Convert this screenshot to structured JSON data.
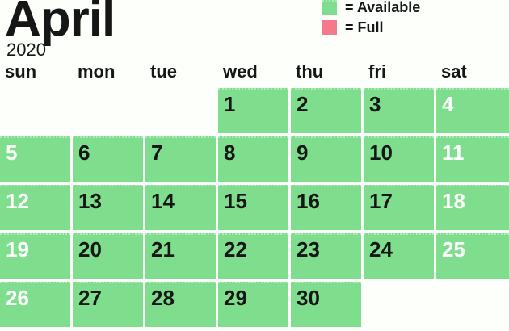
{
  "title": {
    "month": "April",
    "year": "2020"
  },
  "legend": {
    "items": [
      {
        "key": "available",
        "swatch_color": "#7ede8d",
        "label": "= Available"
      },
      {
        "key": "full",
        "swatch_color": "#f47a8a",
        "label": "= Full"
      }
    ]
  },
  "weekday_headers": [
    "sun",
    "mon",
    "tue",
    "wed",
    "thu",
    "fri",
    "sat"
  ],
  "calendar": {
    "month": "April",
    "year": "2020",
    "weeks": [
      {
        "cells": [
          {
            "date": "",
            "status": "empty",
            "text_style": "none"
          },
          {
            "date": "",
            "status": "empty",
            "text_style": "none"
          },
          {
            "date": "",
            "status": "empty",
            "text_style": "none"
          },
          {
            "date": "1",
            "status": "available",
            "text_style": "dark"
          },
          {
            "date": "2",
            "status": "available",
            "text_style": "dark"
          },
          {
            "date": "3",
            "status": "available",
            "text_style": "dark"
          },
          {
            "date": "4",
            "status": "available",
            "text_style": "light"
          }
        ]
      },
      {
        "cells": [
          {
            "date": "5",
            "status": "available",
            "text_style": "light"
          },
          {
            "date": "6",
            "status": "available",
            "text_style": "dark"
          },
          {
            "date": "7",
            "status": "available",
            "text_style": "dark"
          },
          {
            "date": "8",
            "status": "available",
            "text_style": "dark"
          },
          {
            "date": "9",
            "status": "available",
            "text_style": "dark"
          },
          {
            "date": "10",
            "status": "available",
            "text_style": "dark"
          },
          {
            "date": "11",
            "status": "available",
            "text_style": "light"
          }
        ]
      },
      {
        "cells": [
          {
            "date": "12",
            "status": "available",
            "text_style": "light"
          },
          {
            "date": "13",
            "status": "available",
            "text_style": "dark"
          },
          {
            "date": "14",
            "status": "available",
            "text_style": "dark"
          },
          {
            "date": "15",
            "status": "available",
            "text_style": "dark"
          },
          {
            "date": "16",
            "status": "available",
            "text_style": "dark"
          },
          {
            "date": "17",
            "status": "available",
            "text_style": "dark"
          },
          {
            "date": "18",
            "status": "available",
            "text_style": "light"
          }
        ]
      },
      {
        "cells": [
          {
            "date": "19",
            "status": "available",
            "text_style": "light"
          },
          {
            "date": "20",
            "status": "available",
            "text_style": "dark"
          },
          {
            "date": "21",
            "status": "available",
            "text_style": "dark"
          },
          {
            "date": "22",
            "status": "available",
            "text_style": "dark"
          },
          {
            "date": "23",
            "status": "available",
            "text_style": "dark"
          },
          {
            "date": "24",
            "status": "available",
            "text_style": "dark"
          },
          {
            "date": "25",
            "status": "available",
            "text_style": "light"
          }
        ]
      },
      {
        "cells": [
          {
            "date": "26",
            "status": "available",
            "text_style": "light"
          },
          {
            "date": "27",
            "status": "available",
            "text_style": "dark"
          },
          {
            "date": "28",
            "status": "available",
            "text_style": "dark"
          },
          {
            "date": "29",
            "status": "available",
            "text_style": "dark"
          },
          {
            "date": "30",
            "status": "available",
            "text_style": "dark"
          },
          {
            "date": "",
            "status": "empty",
            "text_style": "none"
          },
          {
            "date": "",
            "status": "empty",
            "text_style": "none"
          }
        ]
      }
    ]
  },
  "colors": {
    "background": "#fdfffb",
    "available": "#7ede8d",
    "full": "#f47a8a",
    "ink": "#161616",
    "weekend_date_text": "#fdfffd"
  }
}
